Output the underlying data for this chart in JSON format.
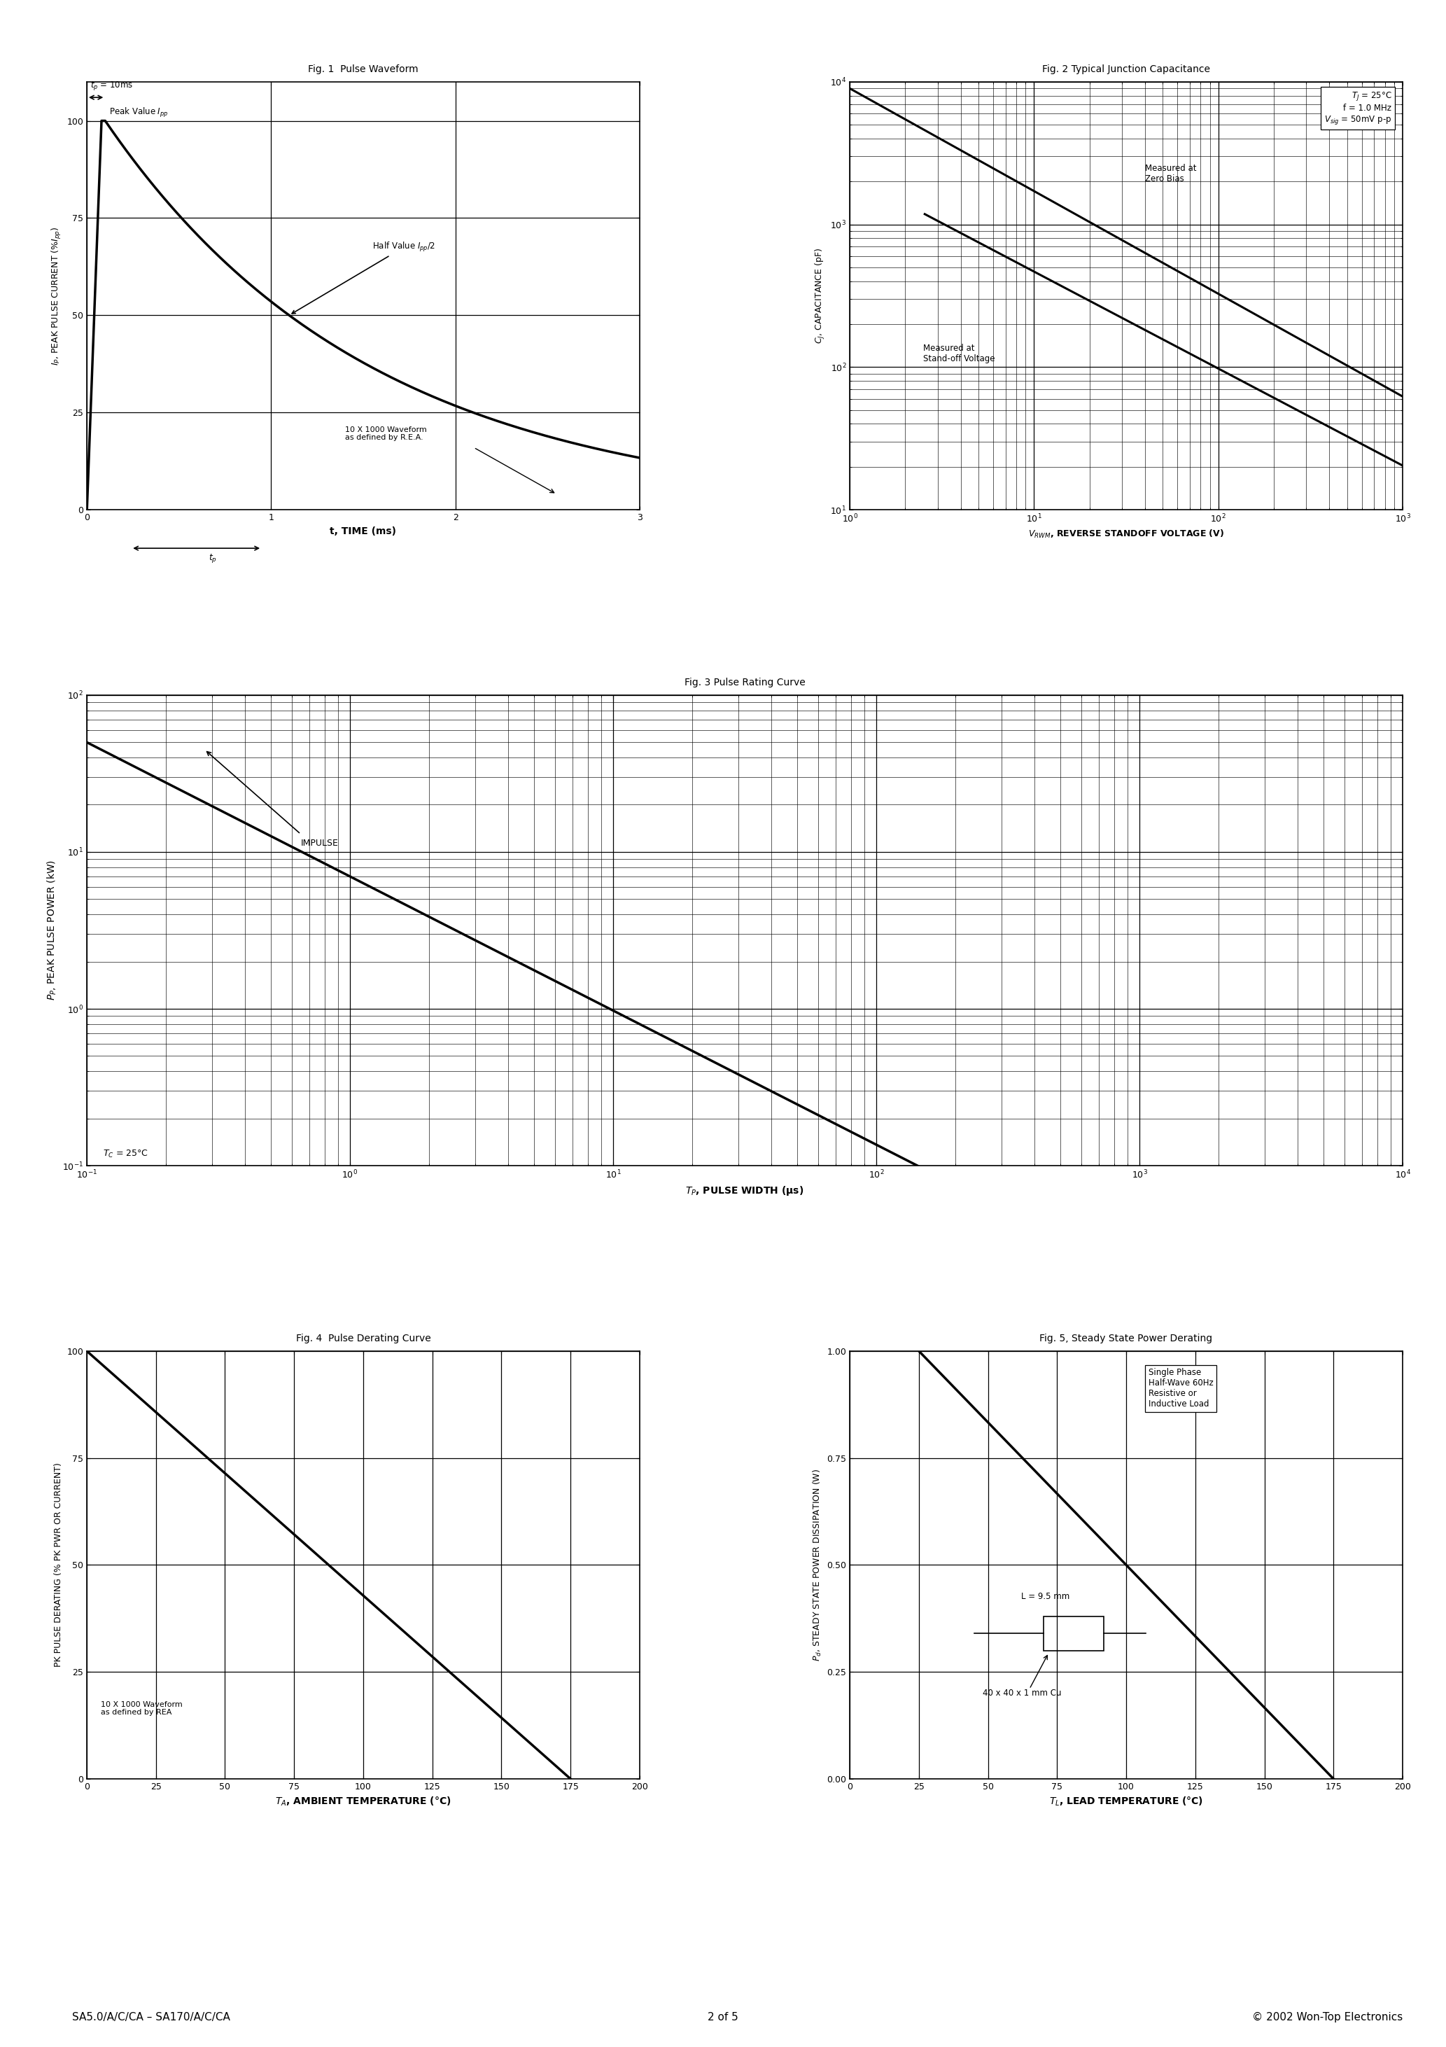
{
  "page_title": "SA5.0/A/C/CA – SA170/A/C/CA",
  "page_number": "2 of 5",
  "copyright": "© 2002 Won-Top Electronics",
  "fig1": {
    "title": "Fig. 1  Pulse Waveform",
    "xlabel": "t, TIME (ms)",
    "ylabel": "I_P, PEAK PULSE CURRENT (%I_pp)",
    "xlim": [
      0,
      3
    ],
    "ylim": [
      0,
      110
    ],
    "yticks": [
      0,
      25,
      50,
      75,
      100
    ],
    "xticks": [
      0,
      1,
      2,
      3
    ]
  },
  "fig2": {
    "title": "Fig. 2 Typical Junction Capacitance",
    "xlabel": "V_RWM, REVERSE STANDOFF VOLTAGE (V)",
    "ylabel": "C_J, CAPACITANCE (pF)",
    "xlim_log": [
      1,
      1000
    ],
    "ylim_log": [
      10,
      10000
    ]
  },
  "fig3": {
    "title": "Fig. 3 Pulse Rating Curve",
    "xlabel": "T_P, PULSE WIDTH (μs)",
    "ylabel": "P_P, PEAK PULSE POWER (kW)",
    "xlim_log": [
      0.1,
      10000
    ],
    "ylim_log": [
      0.1,
      100
    ]
  },
  "fig4": {
    "title": "Fig. 4  Pulse Derating Curve",
    "xlabel": "T_A, AMBIENT TEMPERATURE (°C)",
    "ylabel": "PK PULSE DERATING (% PK PWR OR CURRENT)",
    "xlim": [
      0,
      200
    ],
    "ylim": [
      0,
      100
    ],
    "xticks": [
      0,
      25,
      50,
      75,
      100,
      125,
      150,
      175,
      200
    ],
    "yticks": [
      0,
      25,
      50,
      75,
      100
    ]
  },
  "fig5": {
    "title": "Fig. 5, Steady State Power Derating",
    "xlabel": "T_L, LEAD TEMPERATURE (°C)",
    "ylabel": "P_d, STEADY STATE POWER DISSIPATION (W)",
    "xlim": [
      0,
      200
    ],
    "ylim": [
      0,
      1.0
    ],
    "xticks": [
      0,
      25,
      50,
      75,
      100,
      125,
      150,
      175,
      200
    ],
    "yticks": [
      0,
      0.25,
      0.5,
      0.75,
      1.0
    ]
  }
}
